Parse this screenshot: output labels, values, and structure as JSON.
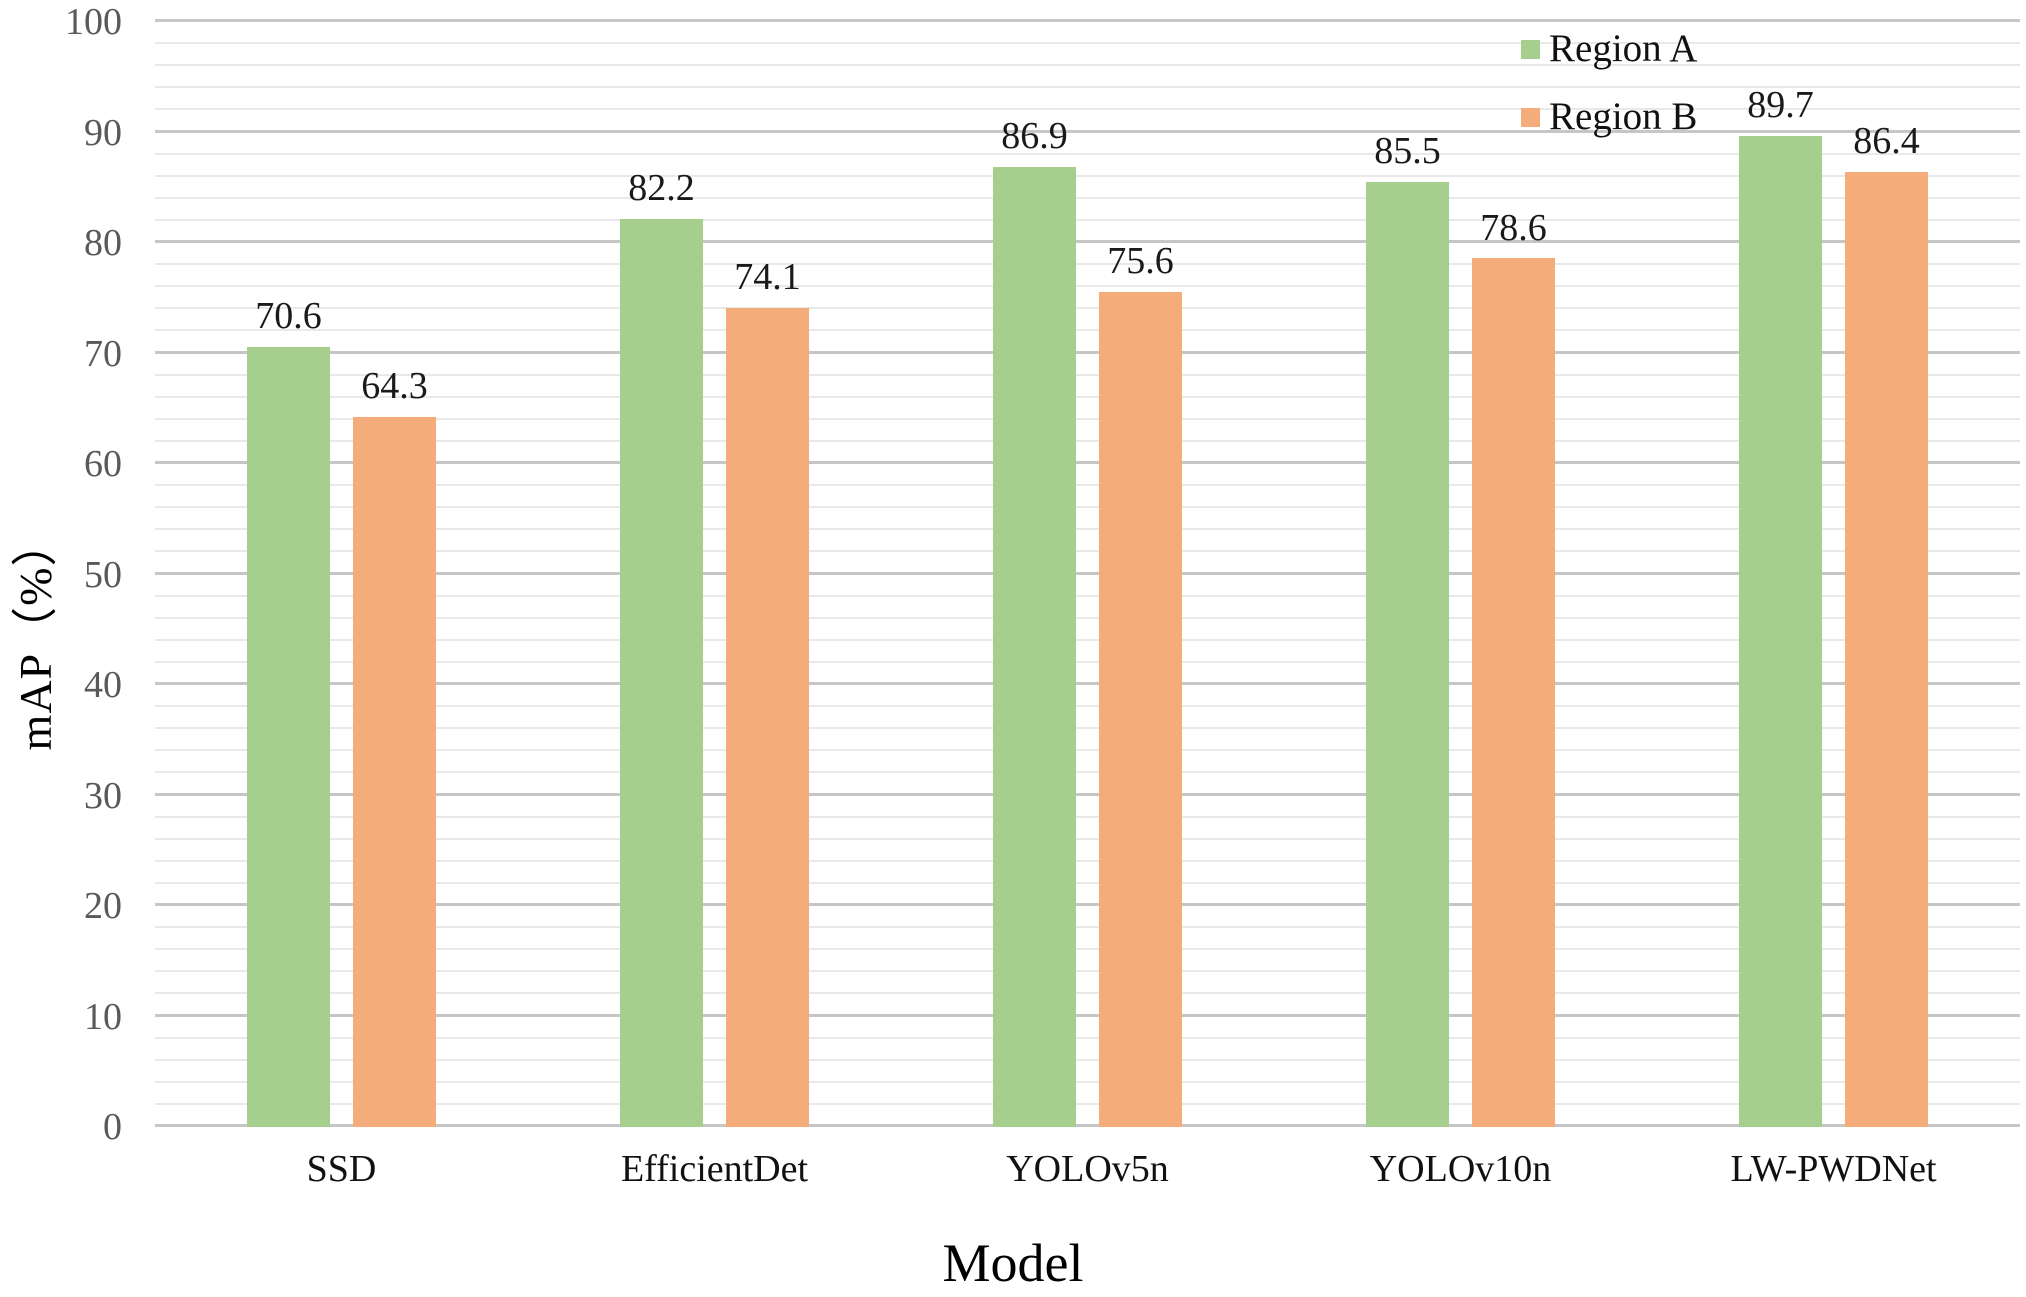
{
  "chart_data": {
    "type": "bar",
    "title": "",
    "xlabel": "Model",
    "ylabel": "mAP（%）",
    "categories": [
      "SSD",
      "EfficientDet",
      "YOLOv5n",
      "YOLOv10n",
      "LW-PWDNet"
    ],
    "series": [
      {
        "name": "Region A",
        "color": "#A6CE8C",
        "values": [
          70.6,
          82.2,
          86.9,
          85.5,
          89.7
        ]
      },
      {
        "name": "Region B",
        "color": "#F4AC7B",
        "values": [
          64.3,
          74.1,
          75.6,
          78.6,
          86.4
        ]
      }
    ],
    "ylim": [
      0,
      100
    ],
    "y_major_step": 10,
    "y_minor_step": 2,
    "y_tick_labels": [
      "0",
      "10",
      "20",
      "30",
      "40",
      "50",
      "60",
      "70",
      "80",
      "90",
      "100"
    ],
    "grid": "horizontal",
    "legend_position": "top-right",
    "data_labels": true
  },
  "colors": {
    "grid_major": "#C6C6C6",
    "grid_minor": "#E9E9E9",
    "axis_text": "#595959",
    "label_text": "#1a1a1a"
  }
}
